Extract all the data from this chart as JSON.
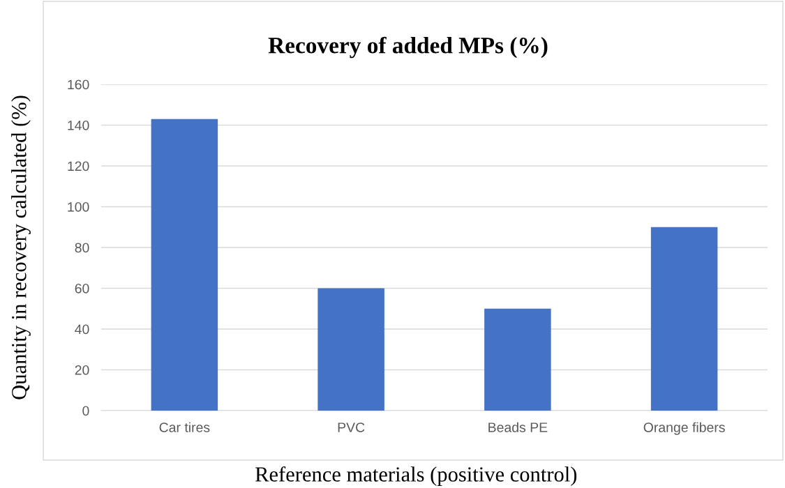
{
  "chart_data": {
    "type": "bar",
    "title": "Recovery of added MPs (%)",
    "xlabel": "Reference materials (positive control)",
    "ylabel": "Quantity in recovery calculated (%)",
    "categories": [
      "Car tires",
      "PVC",
      "Beads PE",
      "Orange fibers"
    ],
    "values": [
      143,
      60,
      50,
      90
    ],
    "color": "#4472c4",
    "ylim": [
      0,
      160
    ],
    "yticks": [
      0,
      20,
      40,
      60,
      80,
      100,
      120,
      140,
      160
    ],
    "grid": "y",
    "legend": false
  }
}
